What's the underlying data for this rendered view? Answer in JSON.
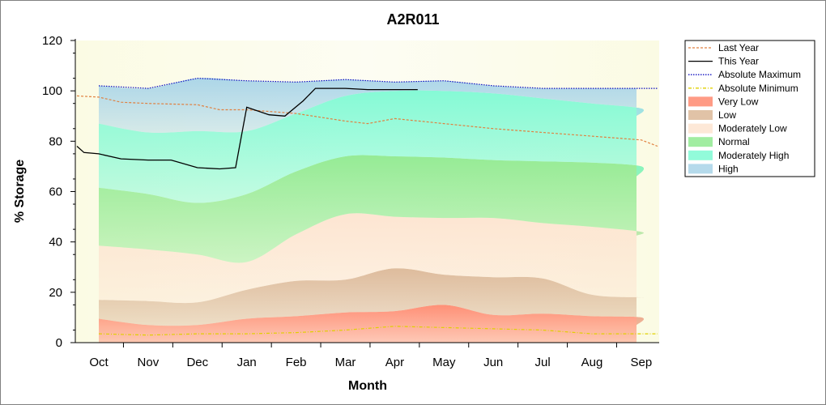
{
  "chart_data": {
    "type": "area",
    "title": "A2R011",
    "xlabel": "Month",
    "ylabel": "% Storage",
    "ylim": [
      0,
      120
    ],
    "yticks": [
      "0",
      "20",
      "40",
      "60",
      "80",
      "100",
      "120"
    ],
    "month_ticks": [
      "Oct",
      "Nov",
      "Dec",
      "Jan",
      "Feb",
      "Mar",
      "Apr",
      "May",
      "Jun",
      "Jul",
      "Aug",
      "Sep"
    ],
    "grid": false,
    "legend_position": "right",
    "x": [
      "Oct 1",
      "Nov 1",
      "Dec 1",
      "Jan 1",
      "Feb 1",
      "Mar 1",
      "Apr 1",
      "May 1",
      "Jun 1",
      "Jul 1",
      "Aug 1",
      "Sep 1",
      "Sep 30"
    ],
    "bands": [
      {
        "name": "Very Low",
        "color": "#ff8a70",
        "upper": [
          9.5,
          7,
          7,
          9.5,
          10.5,
          12,
          12.5,
          15,
          11,
          11.5,
          10.5,
          10,
          7
        ]
      },
      {
        "name": "Low",
        "color": "#dcb898",
        "upper": [
          17,
          16.5,
          16,
          21,
          24.5,
          25,
          29.5,
          27,
          26,
          25.5,
          19,
          18,
          18
        ]
      },
      {
        "name": "Moderately Low",
        "color": "#fde4d0",
        "upper": [
          38.5,
          37,
          35,
          32,
          43,
          51,
          50,
          49.5,
          49.5,
          47.5,
          46,
          44,
          42.5
        ]
      },
      {
        "name": "Normal",
        "color": "#90ea90",
        "upper": [
          61.5,
          59,
          55.5,
          59,
          68,
          74,
          74,
          73.5,
          72.5,
          72,
          71.5,
          70,
          66
        ]
      },
      {
        "name": "Moderately High",
        "color": "#7ffad4",
        "upper": [
          87,
          83.5,
          84,
          84,
          91,
          98,
          100,
          100,
          99,
          97,
          95,
          93,
          90
        ]
      },
      {
        "name": "High",
        "color": "#a8d4e8",
        "upper": [
          102,
          101,
          105,
          104,
          103.5,
          104.5,
          103.5,
          104,
          102,
          101,
          101,
          101,
          101
        ]
      }
    ],
    "series": [
      {
        "name": "Last Year",
        "color": "#e08040",
        "style": "dashed",
        "x": [
          "Sep 15",
          "Oct 1",
          "Oct 15",
          "Nov 1",
          "Dec 1",
          "Dec 15",
          "Jan 1",
          "Feb 1",
          "Mar 1",
          "Mar 15",
          "Apr 1",
          "May 1",
          "Jun 1",
          "Jul 1",
          "Aug 1",
          "Sep 1",
          "Sep 30"
        ],
        "y": [
          98,
          97.5,
          95.5,
          95,
          94.5,
          92.5,
          92.5,
          91,
          88,
          87,
          89,
          87,
          85,
          83.5,
          82,
          80.5,
          78
        ]
      },
      {
        "name": "This Year",
        "color": "#000000",
        "style": "solid",
        "x": [
          "Sep 15",
          "Sep 22",
          "Oct 1",
          "Oct 15",
          "Nov 1",
          "Nov 15",
          "Dec 1",
          "Dec 15",
          "Dec 25",
          "Jan 1",
          "Jan 15",
          "Jan 25",
          "Feb 5",
          "Feb 12",
          "Feb 20",
          "Mar 1",
          "Mar 15",
          "Apr 1",
          "Apr 15"
        ],
        "y": [
          78,
          75.5,
          75,
          73,
          72.5,
          72.5,
          69.5,
          69,
          69.5,
          93.5,
          90.5,
          90,
          96,
          101,
          101,
          101,
          100.5,
          100.5,
          100.5
        ]
      },
      {
        "name": "Absolute Maximum",
        "color": "#1010c0",
        "style": "dotted",
        "x": [
          "Oct 1",
          "Nov 1",
          "Dec 1",
          "Jan 1",
          "Feb 1",
          "Mar 1",
          "Apr 1",
          "May 1",
          "Jun 1",
          "Jul 1",
          "Aug 1",
          "Sep 1",
          "Sep 30"
        ],
        "y": [
          102,
          101,
          105,
          104,
          103.5,
          104.5,
          103.5,
          104,
          102,
          101,
          101,
          101,
          101
        ]
      },
      {
        "name": "Absolute Minimum",
        "color": "#e0d000",
        "style": "dashdot",
        "x": [
          "Oct 1",
          "Nov 1",
          "Dec 1",
          "Jan 1",
          "Feb 1",
          "Mar 1",
          "Apr 1",
          "May 1",
          "Jun 1",
          "Jul 1",
          "Aug 1",
          "Sep 1",
          "Sep 30"
        ],
        "y": [
          3.5,
          3,
          3.5,
          3.5,
          4,
          5,
          6.5,
          6,
          5.5,
          5,
          3.5,
          3.5,
          3.5
        ]
      }
    ],
    "legend": [
      "Last Year",
      "This Year",
      "Absolute Maximum",
      "Absolute Minimum",
      "Very Low",
      "Low",
      "Moderately Low",
      "Normal",
      "Moderately High",
      "High"
    ]
  }
}
